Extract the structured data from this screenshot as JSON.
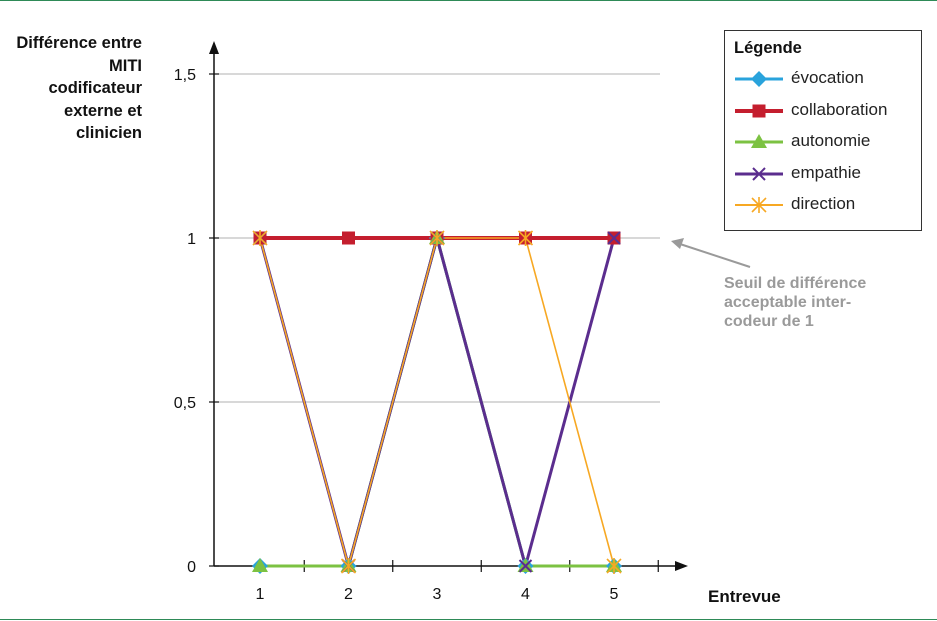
{
  "chart_data": {
    "type": "line",
    "title": "",
    "xlabel": "Entrevue",
    "ylabel": "Différence entre MITI codificateur externe et clinicien",
    "categories": [
      1,
      2,
      3,
      4,
      5
    ],
    "x_tick_labels": [
      "1",
      "2",
      "3",
      "4",
      "5"
    ],
    "y_tick_labels": [
      "0",
      "0,5",
      "1",
      "1,5"
    ],
    "y_ticks": [
      0,
      0.5,
      1,
      1.5
    ],
    "ylim": [
      0,
      1.5
    ],
    "grid": true,
    "legend_title": "Légende",
    "legend_position": "top-right",
    "series": [
      {
        "name": "évocation",
        "values": [
          0,
          0,
          1,
          0,
          0
        ],
        "color": "#29a3dc",
        "marker": "diamond"
      },
      {
        "name": "collaboration",
        "values": [
          1,
          1,
          1,
          1,
          1
        ],
        "color": "#c41e2e",
        "marker": "square"
      },
      {
        "name": "autonomie",
        "values": [
          0,
          0,
          1,
          0,
          0
        ],
        "color": "#7cc242",
        "marker": "triangle"
      },
      {
        "name": "empathie",
        "values": [
          1,
          0,
          1,
          0,
          1
        ],
        "color": "#5b2d8e",
        "marker": "x"
      },
      {
        "name": "direction",
        "values": [
          1,
          0,
          1,
          1,
          0
        ],
        "color": "#f7a823",
        "marker": "asterisk"
      }
    ],
    "annotation": {
      "lines": [
        "Seuil de différence",
        "acceptable inter-",
        "codeur de 1"
      ]
    }
  }
}
